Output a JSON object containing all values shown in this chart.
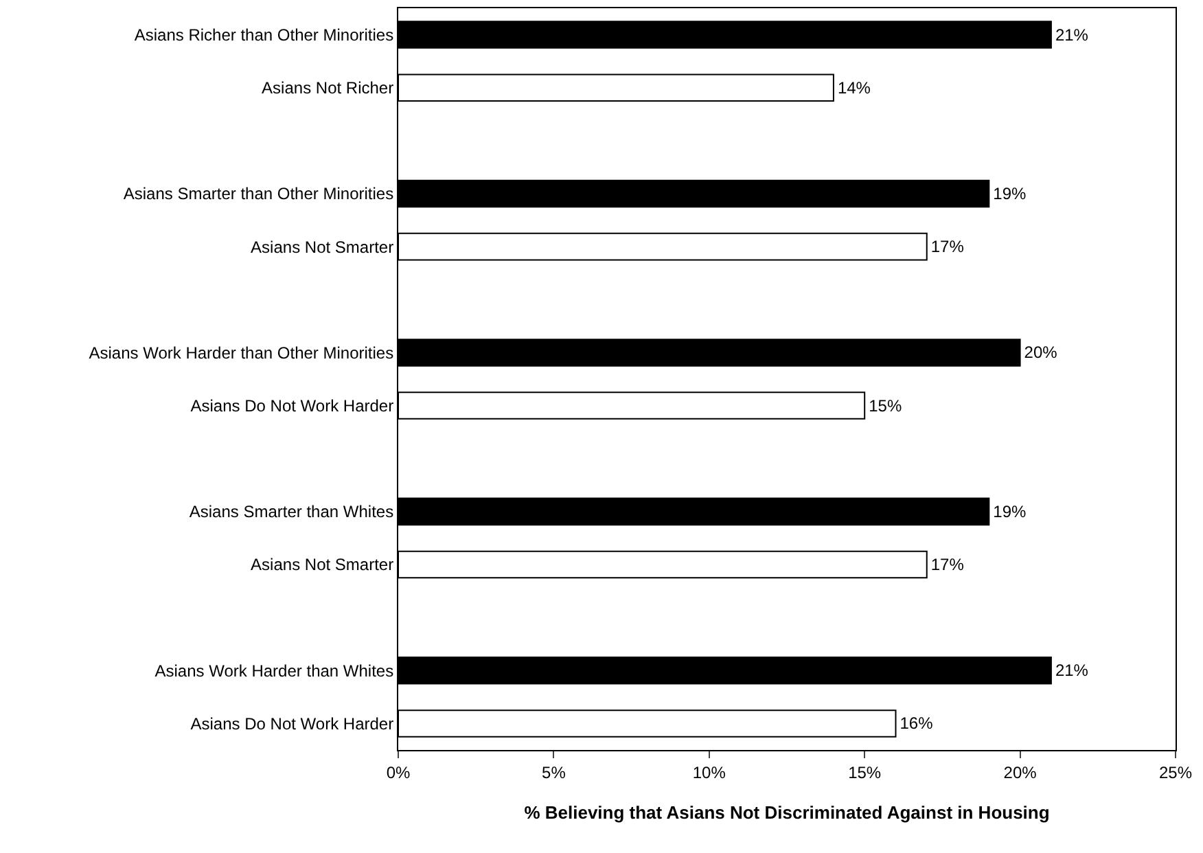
{
  "chart_data": {
    "type": "bar",
    "orientation": "horizontal",
    "xlabel": "% Believing that Asians Not Discriminated Against in Housing",
    "categories": [
      "Asians Richer than Other Minorities",
      "Asians Not Richer",
      null,
      "Asians Smarter than Other Minorities",
      "Asians Not Smarter",
      null,
      "Asians Work Harder than Other Minorities",
      "Asians Do Not Work Harder",
      null,
      "Asians Smarter than Whites",
      "Asians Not Smarter",
      null,
      "Asians Work Harder than Whites",
      "Asians Do Not Work Harder"
    ],
    "values": [
      21,
      14,
      null,
      19,
      17,
      null,
      20,
      15,
      null,
      19,
      17,
      null,
      21,
      16
    ],
    "value_labels": [
      "21%",
      "14%",
      null,
      "19%",
      "17%",
      null,
      "20%",
      "15%",
      null,
      "19%",
      "17%",
      null,
      "21%",
      "16%"
    ],
    "colors": [
      "#000000",
      "#ffffff",
      "#ffffff",
      "#000000",
      "#ffffff",
      "#ffffff",
      "#000000",
      "#ffffff",
      "#ffffff",
      "#000000",
      "#ffffff",
      "#ffffff",
      "#000000",
      "#ffffff"
    ],
    "xlim": [
      0,
      25
    ],
    "xticks": [
      {
        "value": 0,
        "label": "0%"
      },
      {
        "value": 5,
        "label": "5%"
      },
      {
        "value": 10,
        "label": "10%"
      },
      {
        "value": 15,
        "label": "15%"
      },
      {
        "value": 20,
        "label": "20%"
      },
      {
        "value": 25,
        "label": "25%"
      }
    ]
  }
}
